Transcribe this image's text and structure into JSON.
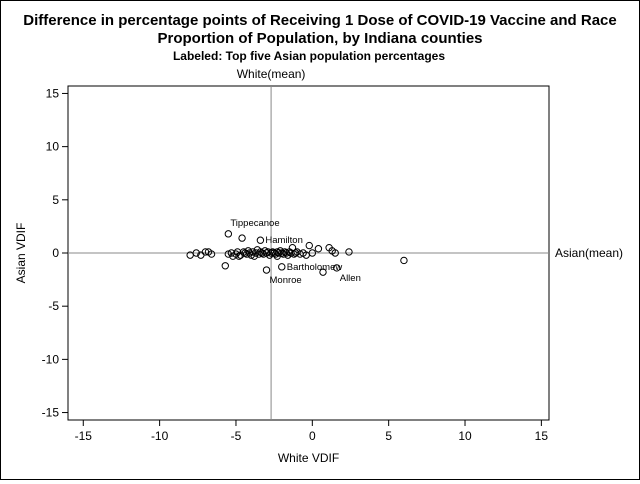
{
  "chart_data": {
    "type": "scatter",
    "title_lines": [
      "Difference in percentage points of Receiving 1 Dose of COVID-19 Vaccine and Race",
      "Proportion of Population, by Indiana counties"
    ],
    "subtitle": "Labeled: Top five Asian population percentages",
    "xlabel": "White VDIF",
    "ylabel": "Asian VDIF",
    "xlim": [
      -16,
      15.5
    ],
    "ylim": [
      -15.7,
      15.7
    ],
    "xticks": [
      -15,
      -10,
      -5,
      0,
      5,
      10,
      15
    ],
    "yticks": [
      -15,
      -10,
      -5,
      0,
      5,
      10,
      15
    ],
    "tick_labels": {
      "x": [
        "-15",
        "-10",
        "-5",
        "0",
        "5",
        "10",
        "15"
      ],
      "y": [
        "-15",
        "-10",
        "-5",
        "0",
        "5",
        "10",
        "15"
      ]
    },
    "reference_lines": {
      "vertical": {
        "x": -2.7,
        "label": "White(mean)"
      },
      "horizontal": {
        "y": 0,
        "label": "Asian(mean)"
      }
    },
    "marker": "open-circle",
    "points": [
      [
        -8.0,
        -0.2
      ],
      [
        -7.6,
        0.0
      ],
      [
        -7.3,
        -0.2
      ],
      [
        -7.0,
        0.1
      ],
      [
        -6.8,
        0.1
      ],
      [
        -6.6,
        -0.1
      ],
      [
        -5.7,
        -1.2
      ],
      [
        -5.5,
        1.8
      ],
      [
        -5.5,
        -0.1
      ],
      [
        -5.3,
        0.0
      ],
      [
        -5.2,
        -0.3
      ],
      [
        -5.0,
        -0.1
      ],
      [
        -4.9,
        0.1
      ],
      [
        -4.8,
        -0.3
      ],
      [
        -4.7,
        -0.2
      ],
      [
        -4.6,
        1.4
      ],
      [
        -4.5,
        0.1
      ],
      [
        -4.4,
        0.0
      ],
      [
        -4.3,
        -0.1
      ],
      [
        -4.2,
        0.2
      ],
      [
        -4.1,
        0.0
      ],
      [
        -4.0,
        -0.2
      ],
      [
        -3.9,
        0.1
      ],
      [
        -3.8,
        -0.3
      ],
      [
        -3.7,
        0.0
      ],
      [
        -3.6,
        0.3
      ],
      [
        -3.5,
        -0.1
      ],
      [
        -3.4,
        1.2
      ],
      [
        -3.4,
        0.1
      ],
      [
        -3.3,
        0.0
      ],
      [
        -3.2,
        -0.1
      ],
      [
        -3.1,
        0.2
      ],
      [
        -3.0,
        0.0
      ],
      [
        -3.0,
        -1.6
      ],
      [
        -2.9,
        0.1
      ],
      [
        -2.8,
        -0.2
      ],
      [
        -2.7,
        0.0
      ],
      [
        -2.6,
        0.1
      ],
      [
        -2.5,
        0.0
      ],
      [
        -2.4,
        -0.1
      ],
      [
        -2.3,
        0.1
      ],
      [
        -2.3,
        -0.3
      ],
      [
        -2.2,
        0.0
      ],
      [
        -2.1,
        0.2
      ],
      [
        -2.0,
        -1.3
      ],
      [
        -2.0,
        0.0
      ],
      [
        -1.9,
        -0.1
      ],
      [
        -1.8,
        0.1
      ],
      [
        -1.7,
        0.0
      ],
      [
        -1.6,
        -0.2
      ],
      [
        -1.5,
        0.1
      ],
      [
        -1.4,
        0.0
      ],
      [
        -1.3,
        0.5
      ],
      [
        -1.2,
        -0.1
      ],
      [
        -1.1,
        0.0
      ],
      [
        -1.0,
        0.1
      ],
      [
        -0.8,
        -0.1
      ],
      [
        -0.6,
        0.0
      ],
      [
        -0.4,
        -0.2
      ],
      [
        -0.2,
        0.7
      ],
      [
        0.0,
        0.0
      ],
      [
        0.4,
        0.4
      ],
      [
        0.7,
        -1.8
      ],
      [
        1.1,
        0.5
      ],
      [
        1.3,
        0.2
      ],
      [
        1.5,
        0.0
      ],
      [
        1.6,
        -1.4
      ],
      [
        2.4,
        0.1
      ],
      [
        6.0,
        -0.7
      ]
    ],
    "labels": [
      {
        "text": "Tippecanoe",
        "x": -5.5,
        "y": 1.8,
        "position": "above-right"
      },
      {
        "text": "Hamilton",
        "x": -3.4,
        "y": 1.2,
        "position": "right"
      },
      {
        "text": "Bartholomew",
        "x": -2.0,
        "y": -1.3,
        "position": "right"
      },
      {
        "text": "Monroe",
        "x": -3.0,
        "y": -1.6,
        "position": "below-right"
      },
      {
        "text": "Allen",
        "x": 1.6,
        "y": -1.4,
        "position": "below-right"
      }
    ]
  },
  "colors": {
    "background": "#ffffff",
    "axis": "#000000",
    "reference_line": "#888888",
    "marker": "#000000"
  }
}
